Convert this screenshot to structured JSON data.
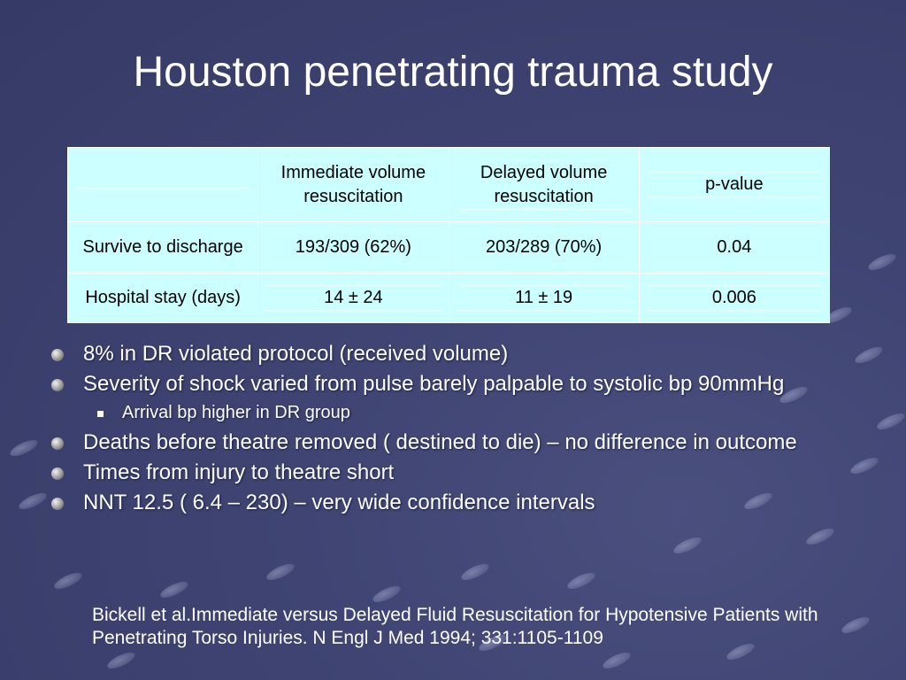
{
  "slide": {
    "title": "Houston penetrating trauma study"
  },
  "table": {
    "header": [
      "",
      "Immediate volume resuscitation",
      "Delayed volume resuscitation",
      "p-value"
    ],
    "rows": [
      [
        "Survive to discharge",
        "193/309 (62%)",
        "203/289 (70%)",
        "0.04"
      ],
      [
        "Hospital stay (days)",
        "14 ± 24",
        "11 ± 19",
        "0.006"
      ]
    ]
  },
  "bullets": [
    {
      "level": 1,
      "text": "8% in DR violated protocol (received volume)"
    },
    {
      "level": 1,
      "text": "Severity of shock varied from pulse barely palpable to systolic bp 90mmHg"
    },
    {
      "level": 2,
      "text": "Arrival bp higher in DR group"
    },
    {
      "level": 1,
      "text": "Deaths before theatre removed ( destined to die) – no difference in outcome"
    },
    {
      "level": 1,
      "text": "Times from injury to theatre short"
    },
    {
      "level": 1,
      "text": "NNT 12.5 ( 6.4 – 230) – very wide confidence intervals"
    }
  ],
  "citation": "Bickell et al.Immediate versus Delayed Fluid Resuscitation for Hypotensive Patients with Penetrating Torso Injuries. N Engl J Med 1994; 331:1105-1109",
  "colors": {
    "background": "#3f4473",
    "table_fill": "#ccffff",
    "text": "#ffffff"
  }
}
